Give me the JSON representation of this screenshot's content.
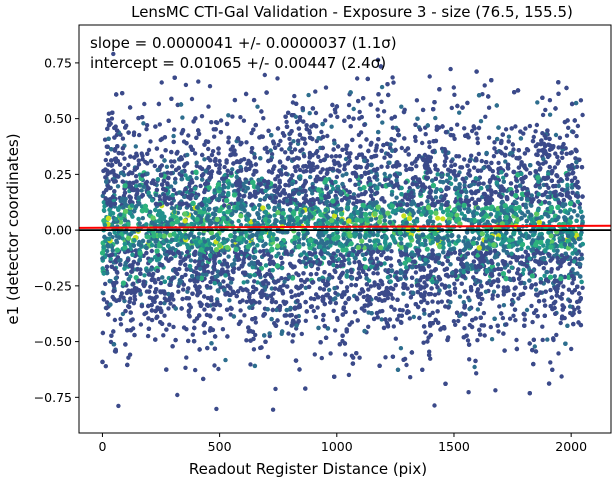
{
  "chart_data": {
    "type": "scatter",
    "title": "LensMC CTI-Gal Validation - Exposure 3 - size (76.5, 155.5)",
    "xlabel": "Readout Register Distance (pix)",
    "ylabel": "e1 (detector coordinates)",
    "xlim": [
      -100,
      2170
    ],
    "ylim": [
      -0.91,
      0.92
    ],
    "xticks": [
      0,
      500,
      1000,
      1500,
      2000
    ],
    "yticks": [
      -0.75,
      -0.5,
      -0.25,
      0.0,
      0.25,
      0.5,
      0.75
    ],
    "xtick_labels": [
      "0",
      "500",
      "1000",
      "1500",
      "2000"
    ],
    "ytick_labels": [
      "−0.75",
      "−0.50",
      "−0.25",
      "0.00",
      "0.25",
      "0.50",
      "0.75"
    ],
    "annotations": [
      "slope = 0.0000041 +/- 0.0000037 (1.1σ)",
      "intercept = 0.01065 +/- 0.00447 (2.4σ)"
    ],
    "fit_line": {
      "slope": 4.1e-06,
      "intercept": 0.01065,
      "color": "#ff0000"
    },
    "zero_line": {
      "y": 0.0,
      "color": "#000000"
    },
    "scatter": {
      "x_range": [
        0,
        2050
      ],
      "y_center": 0.01,
      "y_spread": 0.24,
      "approx_points": 9000,
      "colormap": [
        "#3b4a8a",
        "#2d6e8e",
        "#21918c",
        "#2db27d",
        "#5ec962",
        "#c8e020"
      ]
    },
    "grid": false
  }
}
